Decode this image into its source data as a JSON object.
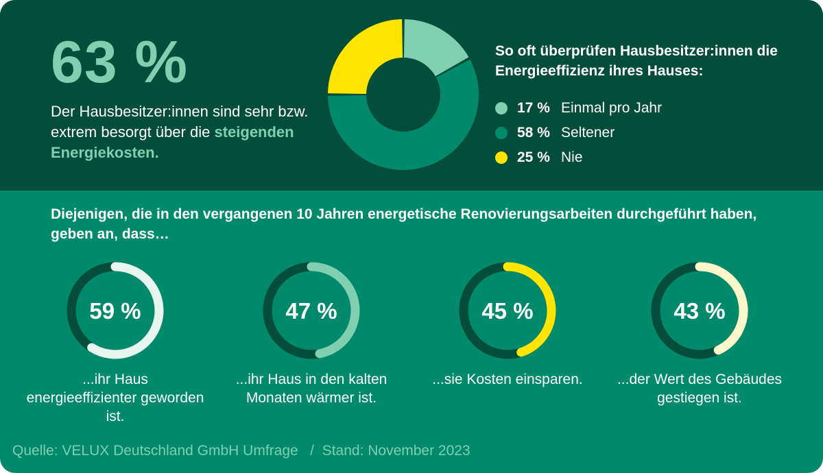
{
  "headline": {
    "value": "63 %",
    "text_before": "Der Hausbesitzer:innen sind sehr bzw. extrem besorgt über die ",
    "text_highlight": "steigenden Energiekosten."
  },
  "legend_title": "So oft überprüfen Hausbesitzer:innen die Energieeffizienz ihres Hauses:",
  "intro": "Diejenigen, die in den vergangenen 10 Jahren energetische Renovierungsarbeiten durchgeführt haben, geben an, dass…",
  "source": "Quelle: VELUX Deutschland GmbH Umfrage   /  Stand: November 2023",
  "colors": {
    "dark_green": "#054d3b",
    "mid_green": "#00896a",
    "mint": "#7fcfb0",
    "yellow": "#ffe500",
    "ring_track": "#054d3b"
  },
  "chart_data": [
    {
      "type": "pie",
      "categories": [
        "Einmal pro Jahr",
        "Seltener",
        "Nie"
      ],
      "values": [
        17,
        58,
        25
      ],
      "labels": [
        "17 %",
        "58 %",
        "25 %"
      ],
      "colors": [
        "#7fcfb0",
        "#00896a",
        "#ffe500"
      ]
    },
    {
      "type": "pie",
      "items": [
        {
          "value": 59,
          "label": "59 %",
          "caption": "...ihr Haus energieeffizienter geworden ist.",
          "color": "#e6f6ef"
        },
        {
          "value": 47,
          "label": "47 %",
          "caption": "...ihr Haus in den kalten Monaten wärmer ist.",
          "color": "#7fcfb0"
        },
        {
          "value": 45,
          "label": "45 %",
          "caption": "...sie Kosten einsparen.",
          "color": "#ffe500"
        },
        {
          "value": 43,
          "label": "43 %",
          "caption": "...der Wert des Gebäudes gestiegen ist.",
          "color": "#fbf7c8"
        }
      ]
    }
  ]
}
